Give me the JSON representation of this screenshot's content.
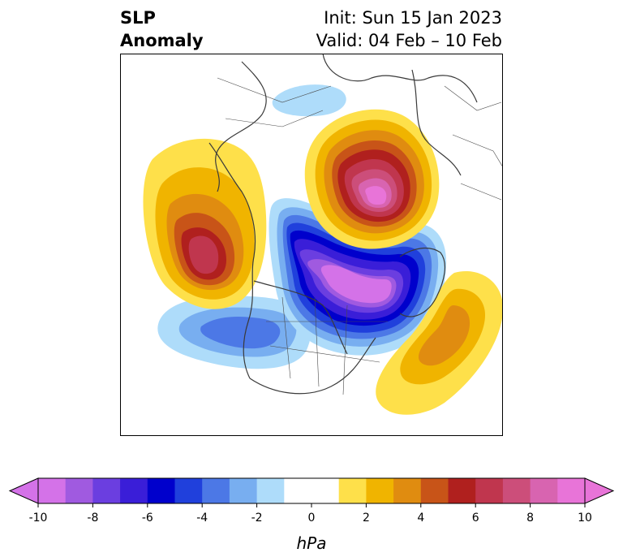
{
  "header": {
    "title_line1": "SLP",
    "title_line2": "Anomaly",
    "init_label": "Init: Sun 15 Jan 2023",
    "valid_label": "Valid: 04 Feb – 10 Feb"
  },
  "colorbar": {
    "unit_label": "hPa",
    "ticks": [
      "-10",
      "-8",
      "-6",
      "-4",
      "-2",
      "0",
      "2",
      "4",
      "6",
      "8",
      "10"
    ],
    "colors": [
      "#d472e8",
      "#a05ae0",
      "#6b3ee0",
      "#3a1ed8",
      "#0000cc",
      "#2040dc",
      "#4c78e6",
      "#78aef0",
      "#aedcfa",
      "#ffffff",
      "#ffffff",
      "#fee04a",
      "#f0b400",
      "#e08c10",
      "#c85418",
      "#b0201e",
      "#c0364e",
      "#cc4e7a",
      "#d864b0",
      "#e874d8"
    ],
    "extend_low_color": "#d472e8",
    "extend_high_color": "#e874d8"
  },
  "map": {
    "projection": "north-polar-stereographic",
    "anomaly_features": [
      {
        "region": "Greenland-Baffin",
        "sign": "negative",
        "peak_hpa": -10
      },
      {
        "region": "Arctic-Siberia",
        "sign": "positive",
        "peak_hpa": 10
      },
      {
        "region": "Northeast Pacific",
        "sign": "positive",
        "peak_hpa": 8
      },
      {
        "region": "Central North Atlantic",
        "sign": "positive",
        "peak_hpa": 4
      },
      {
        "region": "North Pacific-Western North America",
        "sign": "negative",
        "peak_hpa": -4
      },
      {
        "region": "Central Asia",
        "sign": "negative",
        "peak_hpa": -2
      }
    ]
  }
}
